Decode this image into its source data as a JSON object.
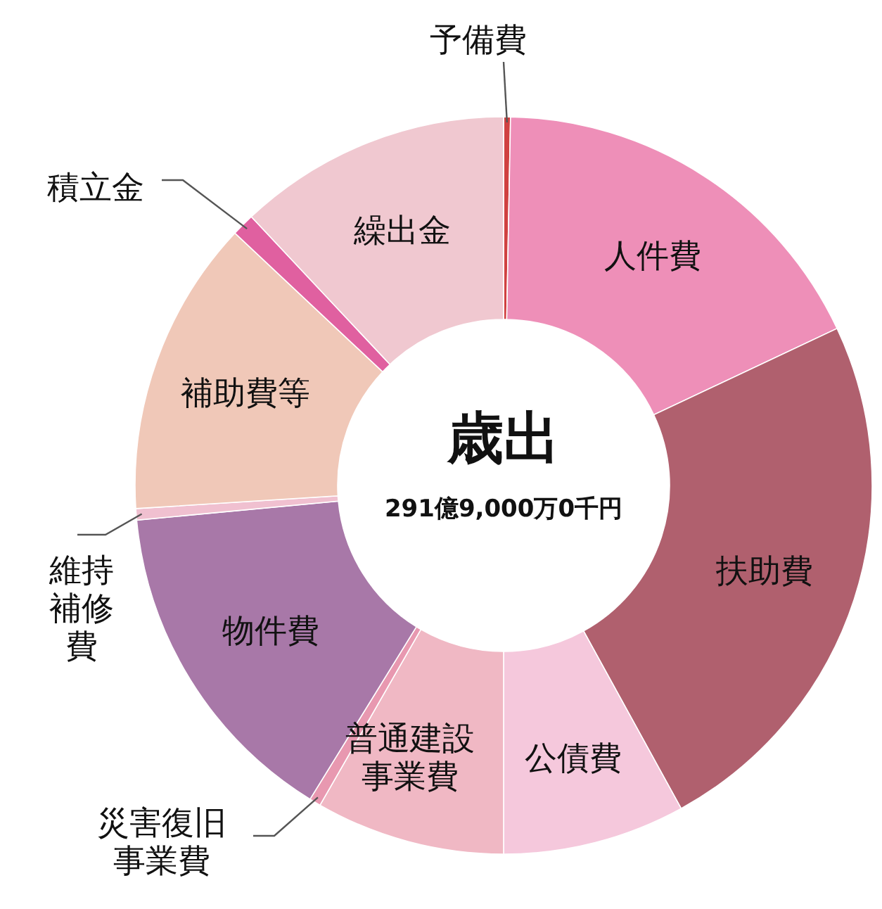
{
  "chart_data": {
    "type": "donut",
    "title": "歳出",
    "subtitle": "291億9,000万0千円",
    "categories": [
      "予備費",
      "人件費",
      "扶助費",
      "公債費",
      "普通建設事業費",
      "災害復旧事業費",
      "物件費",
      "維持補修費",
      "補助費等",
      "積立金",
      "繰出金"
    ],
    "values": [
      0.3,
      17.7,
      24,
      8,
      8.3,
      0.5,
      14.7,
      0.5,
      13,
      1,
      12
    ],
    "colors": [
      "#d04040",
      "#ee8fb8",
      "#b0606e",
      "#f5c8dc",
      "#f0b8c4",
      "#e898b0",
      "#a878a8",
      "#f0c0d0",
      "#f0c8b8",
      "#e060a0",
      "#f0c8d0"
    ],
    "legend": false
  }
}
